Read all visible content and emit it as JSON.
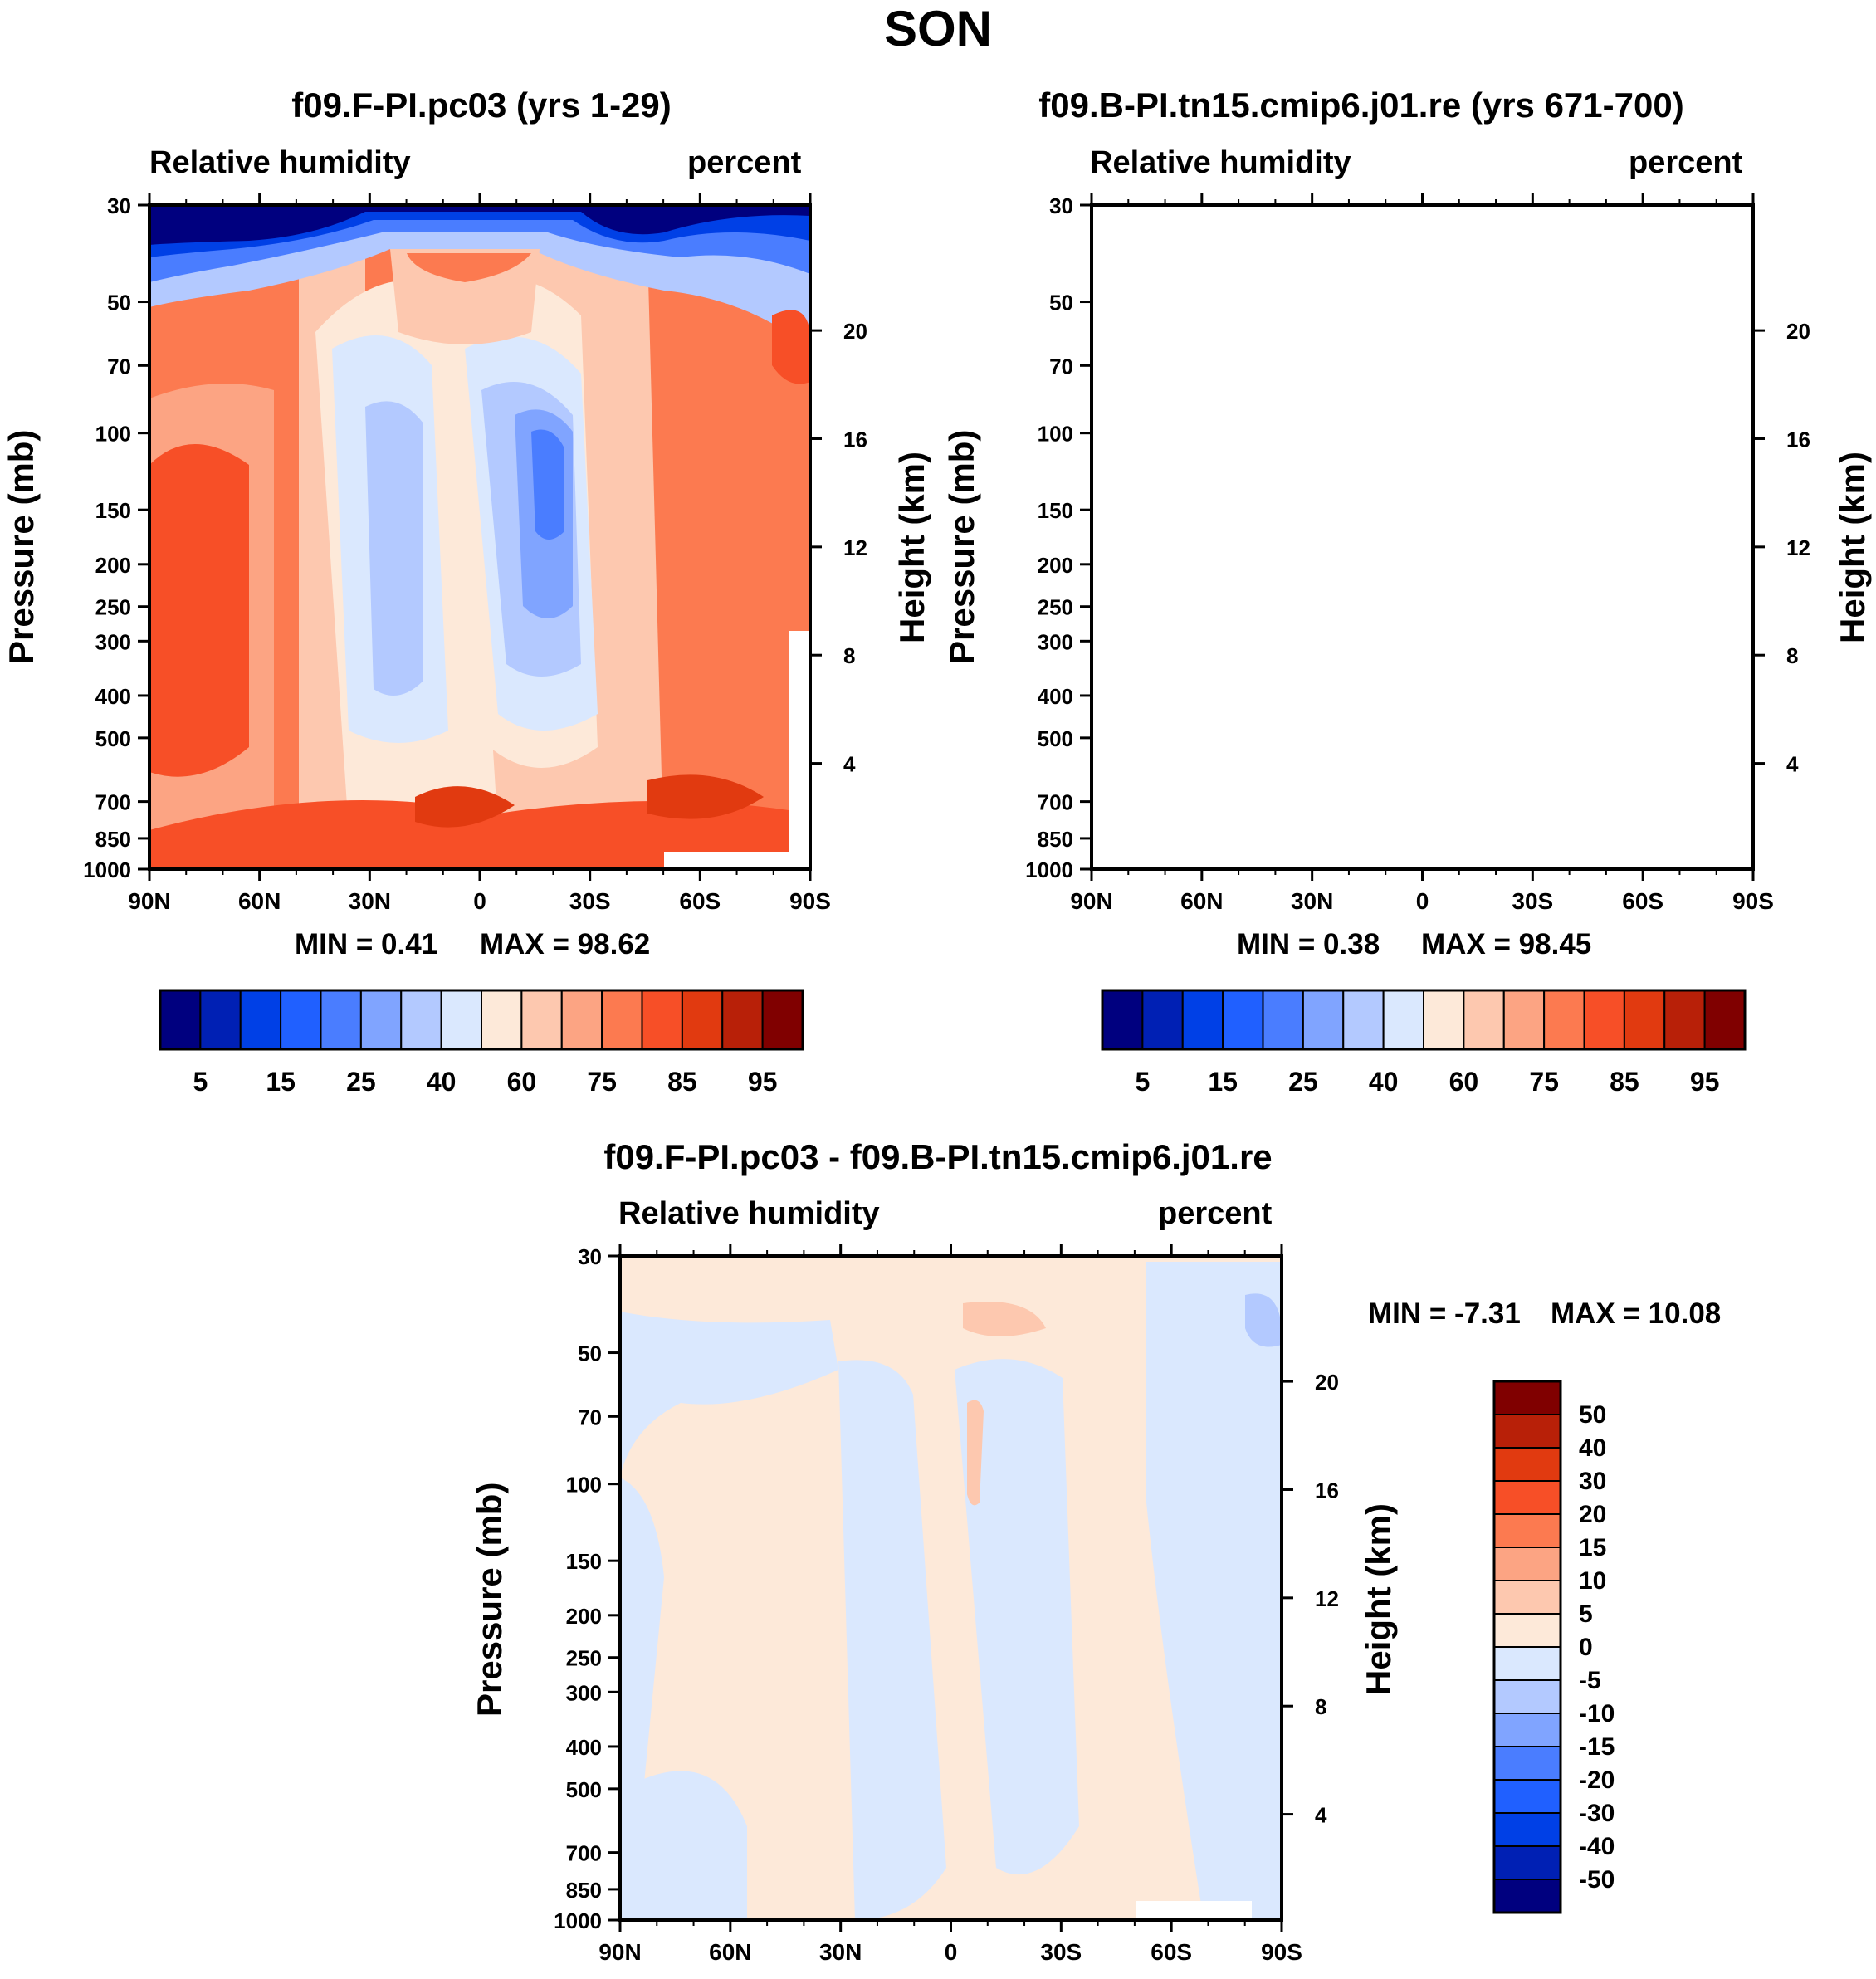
{
  "figure": {
    "title": "SON"
  },
  "panels": [
    {
      "title": "f09.F-PI.pc03 (yrs 1-29)",
      "left_label": "Relative humidity",
      "right_label": "percent",
      "ylabel": "Pressure (mb)",
      "ylabel_right": "Height (km)",
      "min_text": "MIN =   0.41",
      "max_text": "MAX =  98.62"
    },
    {
      "title": "f09.B-PI.tn15.cmip6.j01.re (yrs 671-700)",
      "left_label": "Relative humidity",
      "right_label": "percent",
      "ylabel": "Pressure (mb)",
      "ylabel_right": "Height (km)",
      "min_text": "MIN =   0.38",
      "max_text": "MAX =  98.45"
    },
    {
      "title": "f09.F-PI.pc03 - f09.B-PI.tn15.cmip6.j01.re",
      "left_label": "Relative humidity",
      "right_label": "percent",
      "ylabel": "Pressure (mb)",
      "ylabel_right": "Height (km)",
      "min_text": "MIN =  -7.31",
      "max_text": "MAX =  10.08"
    }
  ],
  "chart_data": {
    "type": "heatmap",
    "x_ticks": [
      "90N",
      "60N",
      "30N",
      "0",
      "30S",
      "60S",
      "90S"
    ],
    "y_ticks": [
      30,
      50,
      70,
      100,
      150,
      200,
      250,
      300,
      400,
      500,
      700,
      850,
      1000
    ],
    "y_range": [
      30,
      1000
    ],
    "height_ticks_km": [
      20,
      16,
      12,
      8,
      4
    ],
    "colorbar_abs": {
      "colors": [
        "#00007f",
        "#0020b4",
        "#0040e6",
        "#2060ff",
        "#4a7dff",
        "#80a4ff",
        "#b3c9ff",
        "#dae8fe",
        "#fde9d9",
        "#fdc8af",
        "#fca483",
        "#fc7a50",
        "#f74f27",
        "#e13a10",
        "#b82008",
        "#800000"
      ],
      "labels": [
        "5",
        "15",
        "25",
        "40",
        "60",
        "75",
        "85",
        "95"
      ]
    },
    "colorbar_diff": {
      "colors": [
        "#800000",
        "#b82008",
        "#e13a10",
        "#f74f27",
        "#fc7a50",
        "#fca483",
        "#fdc8af",
        "#fde9d9",
        "#dae8fe",
        "#b3c9ff",
        "#80a4ff",
        "#4a7dff",
        "#2060ff",
        "#0040e6",
        "#0020b4",
        "#00007f"
      ],
      "labels": [
        "50",
        "40",
        "30",
        "20",
        "15",
        "10",
        "5",
        "0",
        "-5",
        "-10",
        "-15",
        "-20",
        "-30",
        "-40",
        "-50"
      ]
    }
  }
}
